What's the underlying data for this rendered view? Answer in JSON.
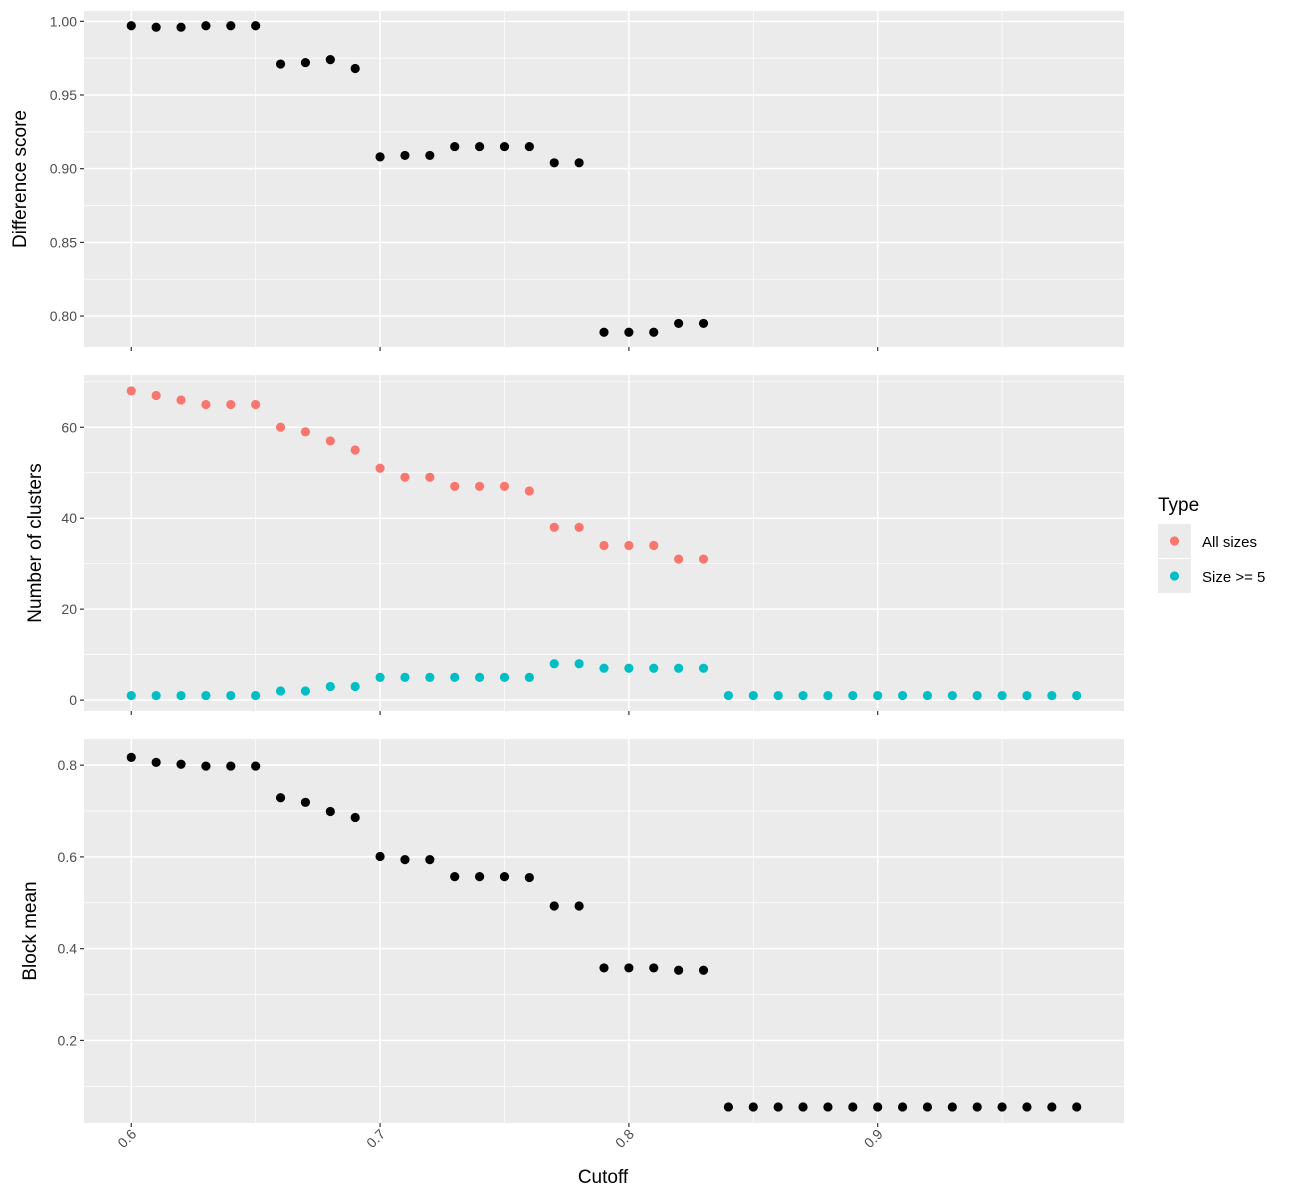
{
  "chart_data": {
    "type": "scatter",
    "xlabel": "Cutoff",
    "x_ticks": [
      0.6,
      0.7,
      0.8,
      0.9
    ],
    "x_tick_labels": [
      "0.6",
      "0.7",
      "0.8",
      "0.9"
    ],
    "xlim": [
      0.581,
      0.999
    ],
    "grid": true,
    "background": "#ebebeb",
    "legend": {
      "title": "Type",
      "position": "right",
      "entries": [
        {
          "label": "All sizes",
          "color": "#f8766d"
        },
        {
          "label": "Size >= 5",
          "color": "#00bfc4"
        }
      ]
    },
    "panels": [
      {
        "ylabel": "Difference score",
        "ylim": [
          0.779,
          1.007
        ],
        "y_ticks": [
          0.8,
          0.85,
          0.9,
          0.95,
          1.0
        ],
        "y_tick_labels": [
          "0.80",
          "0.85",
          "0.90",
          "0.95",
          "1.00"
        ],
        "series": [
          {
            "color": "#000000",
            "x": [
              0.6,
              0.61,
              0.62,
              0.63,
              0.64,
              0.65,
              0.66,
              0.67,
              0.68,
              0.69,
              0.7,
              0.71,
              0.72,
              0.73,
              0.74,
              0.75,
              0.76,
              0.77,
              0.78,
              0.79,
              0.8,
              0.81,
              0.82,
              0.83
            ],
            "y": [
              0.997,
              0.996,
              0.996,
              0.997,
              0.997,
              0.997,
              0.971,
              0.972,
              0.974,
              0.968,
              0.908,
              0.909,
              0.909,
              0.915,
              0.915,
              0.915,
              0.915,
              0.904,
              0.904,
              0.789,
              0.789,
              0.789,
              0.795,
              0.795
            ]
          }
        ]
      },
      {
        "ylabel": "Number of clusters",
        "ylim": [
          -2.4,
          71.5
        ],
        "y_ticks": [
          0,
          20,
          40,
          60
        ],
        "y_tick_labels": [
          "0",
          "20",
          "40",
          "60"
        ],
        "series": [
          {
            "name": "All sizes",
            "color": "#f8766d",
            "x": [
              0.6,
              0.61,
              0.62,
              0.63,
              0.64,
              0.65,
              0.66,
              0.67,
              0.68,
              0.69,
              0.7,
              0.71,
              0.72,
              0.73,
              0.74,
              0.75,
              0.76,
              0.77,
              0.78,
              0.79,
              0.8,
              0.81,
              0.82,
              0.83
            ],
            "y": [
              68,
              67,
              66,
              65,
              65,
              65,
              60,
              59,
              57,
              55,
              51,
              49,
              49,
              47,
              47,
              47,
              46,
              38,
              38,
              34,
              34,
              34,
              31,
              31
            ]
          },
          {
            "name": "Size >= 5",
            "color": "#00bfc4",
            "x": [
              0.6,
              0.61,
              0.62,
              0.63,
              0.64,
              0.65,
              0.66,
              0.67,
              0.68,
              0.69,
              0.7,
              0.71,
              0.72,
              0.73,
              0.74,
              0.75,
              0.76,
              0.77,
              0.78,
              0.79,
              0.8,
              0.81,
              0.82,
              0.83,
              0.84,
              0.85,
              0.86,
              0.87,
              0.88,
              0.89,
              0.9,
              0.91,
              0.92,
              0.93,
              0.94,
              0.95,
              0.96,
              0.97,
              0.98
            ],
            "y": [
              1,
              1,
              1,
              1,
              1,
              1,
              2,
              2,
              3,
              3,
              5,
              5,
              5,
              5,
              5,
              5,
              5,
              8,
              8,
              7,
              7,
              7,
              7,
              7,
              1,
              1,
              1,
              1,
              1,
              1,
              1,
              1,
              1,
              1,
              1,
              1,
              1,
              1,
              1
            ]
          }
        ]
      },
      {
        "ylabel": "Block mean",
        "ylim": [
          0.02,
          0.857
        ],
        "y_ticks": [
          0.2,
          0.4,
          0.6,
          0.8
        ],
        "y_tick_labels": [
          "0.2",
          "0.4",
          "0.6",
          "0.8"
        ],
        "series": [
          {
            "color": "#000000",
            "x": [
              0.6,
              0.61,
              0.62,
              0.63,
              0.64,
              0.65,
              0.66,
              0.67,
              0.68,
              0.69,
              0.7,
              0.71,
              0.72,
              0.73,
              0.74,
              0.75,
              0.76,
              0.77,
              0.78,
              0.79,
              0.8,
              0.81,
              0.82,
              0.83,
              0.84,
              0.85,
              0.86,
              0.87,
              0.88,
              0.89,
              0.9,
              0.91,
              0.92,
              0.93,
              0.94,
              0.95,
              0.96,
              0.97,
              0.98
            ],
            "y": [
              0.817,
              0.806,
              0.802,
              0.798,
              0.798,
              0.798,
              0.729,
              0.719,
              0.699,
              0.686,
              0.601,
              0.594,
              0.594,
              0.557,
              0.557,
              0.557,
              0.555,
              0.493,
              0.493,
              0.358,
              0.358,
              0.358,
              0.353,
              0.353,
              0.055,
              0.055,
              0.055,
              0.055,
              0.055,
              0.055,
              0.055,
              0.055,
              0.055,
              0.055,
              0.055,
              0.055,
              0.055,
              0.055,
              0.055
            ]
          }
        ]
      }
    ]
  }
}
